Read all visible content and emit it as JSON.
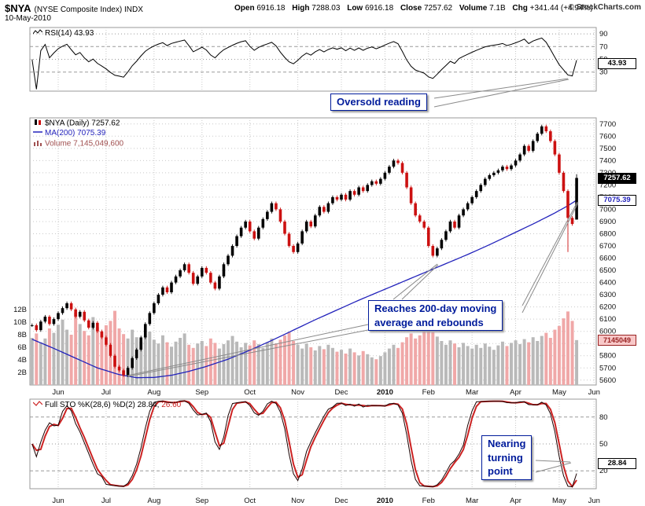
{
  "header": {
    "symbol": "$NYA",
    "symbol_desc": "(NYSE Composite Index)  INDX",
    "date": "10-May-2010",
    "quote": {
      "open_label": "Open",
      "open": "6916.18",
      "high_label": "High",
      "high": "7288.03",
      "low_label": "Low",
      "low": "6916.18",
      "close_label": "Close",
      "close": "7257.62",
      "volume_label": "Volume",
      "volume": "7.1B",
      "chg_label": "Chg",
      "chg": "+341.44 (+4.94%)"
    },
    "copyright": "© StockCharts.com"
  },
  "rsi_panel": {
    "legend": "RSI(14) 43.93",
    "last_label": "43.93",
    "ticks": [
      90,
      70,
      50,
      30
    ]
  },
  "main_panel": {
    "legend_price": "$NYA (Daily) 7257.62",
    "legend_ma": "MA(200) 7075.39",
    "legend_volume": "Volume 7,145,049,600",
    "last_price_label": "7257.62",
    "ma_label": "7075.39",
    "volume_box_label": "7145049",
    "price_range": [
      5600,
      7700
    ],
    "price_step": 100,
    "volume_ticks": [
      "12B",
      "10B",
      "8B",
      "6B",
      "4B",
      "2B"
    ]
  },
  "sto_panel": {
    "legend": "Full STO %K(28,6) %D(2) 28.84,",
    "legend_d": "26.60",
    "last_label": "28.84",
    "ticks": [
      80,
      50,
      20
    ]
  },
  "annotations": {
    "oversold": "Oversold reading",
    "ma_rebound_line1": "Reaches 200-day moving",
    "ma_rebound_line2": "average and rebounds",
    "turning_line1": "Nearing",
    "turning_line2": "turning",
    "turning_line3": "point"
  },
  "x_axis": {
    "months": [
      {
        "label": "Jun",
        "i": 6
      },
      {
        "label": "Jul",
        "i": 17
      },
      {
        "label": "Aug",
        "i": 28
      },
      {
        "label": "Sep",
        "i": 39
      },
      {
        "label": "Oct",
        "i": 50
      },
      {
        "label": "Nov",
        "i": 61
      },
      {
        "label": "Dec",
        "i": 71
      },
      {
        "label": "2010",
        "i": 81,
        "bold": true
      },
      {
        "label": "Feb",
        "i": 91
      },
      {
        "label": "Mar",
        "i": 101
      },
      {
        "label": "Apr",
        "i": 111
      },
      {
        "label": "May",
        "i": 121
      },
      {
        "label": "Jun",
        "i": 129
      }
    ]
  },
  "colors": {
    "up_candle": "#000000",
    "down_candle": "#cc1111",
    "ma_line": "#2222bb",
    "rsi_line": "#000000",
    "sto_k": "#1a0000",
    "sto_d": "#cc2222",
    "vol_up": "#b9b9b9",
    "vol_down": "#f0a8a8",
    "grid": "#c9c9c9",
    "level": "#9a9a9a",
    "pointer": "#8a8a8a",
    "annotation": "#001b9b"
  },
  "chart_data": {
    "type": "candlestick",
    "title": "$NYA (NYSE Composite Index) INDX - Daily, 200-day MA, Volume, RSI(14), Full Stochastics",
    "x_range": "mid-May-2009 to Jun-2010, sampled every 2 trading days",
    "price_ylim": [
      5600,
      7700
    ],
    "volume_ylim_billions": [
      0,
      12
    ],
    "rsi_last": 43.93,
    "sto_k_last": 28.84,
    "sto_d_last": 26.6,
    "ma200_last": 7075.39,
    "rsi_period_samples": 10,
    "sto_lookback_samples": 14,
    "closes": [
      6050,
      6010,
      6080,
      6120,
      6060,
      6100,
      6150,
      6190,
      6230,
      6180,
      6120,
      6160,
      6090,
      6030,
      6070,
      6000,
      5950,
      5890,
      5800,
      5710,
      5680,
      5640,
      5700,
      5780,
      5850,
      5950,
      6060,
      6150,
      6230,
      6300,
      6360,
      6320,
      6400,
      6450,
      6500,
      6550,
      6480,
      6390,
      6450,
      6520,
      6480,
      6400,
      6350,
      6450,
      6550,
      6620,
      6700,
      6780,
      6850,
      6900,
      6820,
      6760,
      6850,
      6920,
      6980,
      7050,
      7000,
      6900,
      6800,
      6700,
      6650,
      6720,
      6820,
      6900,
      6860,
      6950,
      7020,
      6980,
      7050,
      7100,
      7080,
      7120,
      7080,
      7150,
      7120,
      7180,
      7150,
      7200,
      7230,
      7210,
      7250,
      7300,
      7350,
      7400,
      7380,
      7300,
      7180,
      7050,
      6950,
      6900,
      6850,
      6700,
      6620,
      6680,
      6750,
      6820,
      6900,
      6850,
      6950,
      7000,
      7050,
      7100,
      7150,
      7200,
      7250,
      7280,
      7300,
      7320,
      7350,
      7330,
      7360,
      7400,
      7450,
      7520,
      7480,
      7560,
      7620,
      7680,
      7640,
      7560,
      7450,
      7300,
      7150,
      6930,
      6880,
      7257.62
    ],
    "overrides": {
      "123": {
        "low": 6650
      },
      "125": {
        "open": 6916.18,
        "high": 7288.03,
        "low": 6916.18
      }
    },
    "volumes_billions": [
      7.5,
      8.2,
      6.8,
      7.4,
      9.0,
      8.3,
      9.6,
      10.4,
      8.8,
      8.0,
      11.5,
      9.7,
      8.6,
      7.9,
      10.8,
      9.2,
      8.4,
      9.5,
      10.2,
      11.8,
      9.0,
      8.1,
      7.4,
      8.8,
      7.6,
      6.9,
      7.8,
      8.5,
      7.2,
      6.6,
      7.9,
      6.8,
      6.1,
      6.9,
      7.5,
      8.2,
      6.4,
      5.9,
      6.6,
      7.0,
      6.2,
      7.4,
      6.7,
      5.8,
      6.5,
      7.1,
      7.8,
      6.9,
      6.0,
      6.7,
      6.3,
      7.1,
      6.5,
      5.9,
      6.8,
      7.4,
      6.6,
      7.2,
      7.9,
      8.4,
      7.0,
      6.4,
      5.8,
      6.6,
      6.0,
      5.5,
      6.2,
      5.7,
      6.4,
      5.9,
      5.3,
      5.6,
      5.0,
      5.8,
      5.2,
      4.7,
      5.4,
      4.9,
      4.4,
      4.1,
      4.6,
      5.2,
      5.8,
      6.4,
      5.9,
      6.8,
      7.6,
      8.2,
      7.4,
      7.9,
      8.6,
      9.2,
      8.4,
      7.7,
      7.0,
      6.4,
      7.1,
      6.6,
      6.0,
      6.7,
      6.2,
      5.8,
      6.4,
      5.9,
      6.6,
      6.1,
      5.6,
      6.3,
      6.9,
      6.2,
      6.7,
      7.1,
      6.5,
      7.3,
      6.8,
      7.6,
      7.0,
      7.8,
      8.3,
      7.5,
      8.8,
      9.4,
      10.6,
      11.7,
      10.2,
      7.145
    ],
    "ma200_anchors": [
      [
        0,
        5935
      ],
      [
        5,
        5860
      ],
      [
        10,
        5780
      ],
      [
        15,
        5700
      ],
      [
        20,
        5645
      ],
      [
        24,
        5620
      ],
      [
        28,
        5622
      ],
      [
        32,
        5640
      ],
      [
        36,
        5672
      ],
      [
        40,
        5712
      ],
      [
        45,
        5772
      ],
      [
        50,
        5845
      ],
      [
        55,
        5925
      ],
      [
        60,
        6010
      ],
      [
        65,
        6095
      ],
      [
        70,
        6175
      ],
      [
        75,
        6255
      ],
      [
        80,
        6330
      ],
      [
        85,
        6405
      ],
      [
        90,
        6480
      ],
      [
        95,
        6555
      ],
      [
        100,
        6630
      ],
      [
        105,
        6710
      ],
      [
        110,
        6795
      ],
      [
        115,
        6880
      ],
      [
        120,
        6970
      ],
      [
        123,
        7030
      ],
      [
        125,
        7075
      ]
    ]
  }
}
